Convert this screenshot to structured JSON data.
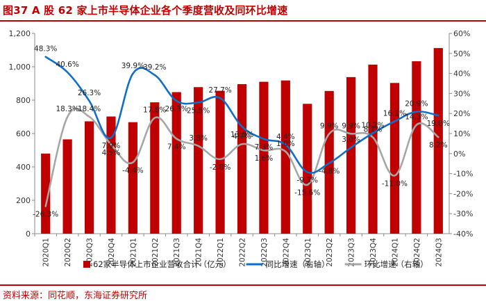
{
  "header": {
    "title": "图37  A 股 62 家上市半导体企业各个季度营收及同环比增速"
  },
  "footer": {
    "source": "资料来源：同花顺，东海证券研究所"
  },
  "chart_data": {
    "type": "bar+line",
    "categories": [
      "2020Q1",
      "2020Q2",
      "2020Q3",
      "2020Q4",
      "2021Q1",
      "2021Q2",
      "2021Q3",
      "2021Q4",
      "2022Q1",
      "2022Q2",
      "2022Q3",
      "2022Q4",
      "2023Q1",
      "2023Q2",
      "2023Q3",
      "2023Q4",
      "2024Q1",
      "2024Q2",
      "2024Q3"
    ],
    "series": [
      {
        "name": "62家半导体上市企业营收合计（亿元）",
        "type": "bar",
        "axis": "left",
        "color": "#c00000",
        "values": [
          480,
          565,
          673,
          702,
          668,
          787,
          848,
          878,
          856,
          896,
          910,
          918,
          778,
          855,
          938,
          1013,
          903,
          1033,
          1112
        ]
      },
      {
        "name": "同比增速（右轴）",
        "type": "line",
        "axis": "right",
        "color": "#0f6ec7",
        "values": [
          48.3,
          40.6,
          26.3,
          7.9,
          39.9,
          39.2,
          26.3,
          25.5,
          27.7,
          13.5,
          7.3,
          4.4,
          -9.3,
          -4.8,
          3.0,
          10.2,
          16.1,
          20.9,
          19.0
        ],
        "labels": [
          "48.3%",
          "40.6%",
          "26.3%",
          "7.9%",
          "39.9%",
          "39.2%",
          "26.3%",
          "25.5%",
          "27.7%",
          "13.5%",
          "7.3%",
          "4.4%",
          "-9.3%",
          "-4.8%",
          "3.0%",
          "10.2%",
          "16.1%",
          "20.9%",
          "19.0%"
        ]
      },
      {
        "name": "环比增速（右轴）",
        "type": "line",
        "axis": "right",
        "color": "#a6a6a6",
        "values": [
          -26.3,
          18.3,
          18.4,
          4.5,
          -4.4,
          17.8,
          7.4,
          3.8,
          -2.8,
          4.7,
          1.6,
          1.0,
          -15.6,
          9.9,
          9.9,
          8.1,
          -11.0,
          14.3,
          8.2
        ],
        "labels": [
          "-26.3%",
          "18.3%",
          "18.4%",
          "4.5%",
          "-4.4%",
          "17.8%",
          "7.4%",
          "3.8%",
          "-2.8%",
          "4.7%",
          "1.6%",
          "1.0%",
          "-15.6%",
          "9.9%",
          "9.9%",
          "8.1%",
          "-11.0%",
          "14.3%",
          "8.2%"
        ]
      }
    ],
    "left_axis": {
      "min": 0,
      "max": 1200,
      "step": 200,
      "tick_labels": [
        "0",
        "200",
        "400",
        "600",
        "800",
        "1,000",
        "1,200"
      ]
    },
    "right_axis": {
      "min": -40,
      "max": 60,
      "step": 10,
      "tick_labels": [
        "-40%",
        "-30%",
        "-20%",
        "-10%",
        "0%",
        "10%",
        "20%",
        "30%",
        "40%",
        "50%",
        "60%"
      ]
    },
    "legend": [
      {
        "label": "62家半导体上市企业营收合计（亿元）",
        "symbol": "bar",
        "color": "#c00000"
      },
      {
        "label": "同比增速（右轴）",
        "symbol": "line",
        "color": "#0f6ec7"
      },
      {
        "label": "环比增速（右轴）",
        "symbol": "line",
        "color": "#a6a6a6"
      }
    ],
    "legend_position": "bottom"
  }
}
